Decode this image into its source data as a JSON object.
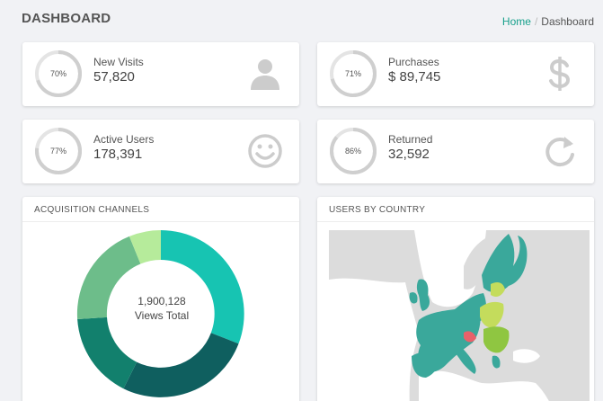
{
  "header": {
    "title": "DASHBOARD"
  },
  "breadcrumb": {
    "home": "Home",
    "separator": "/",
    "current": "Dashboard"
  },
  "stats": [
    {
      "percent": 70,
      "percent_label": "70%",
      "label": "New Visits",
      "value": "57,820",
      "icon": "user-icon"
    },
    {
      "percent": 71,
      "percent_label": "71%",
      "label": "Purchases",
      "value": "$ 89,745",
      "icon": "dollar-icon"
    },
    {
      "percent": 77,
      "percent_label": "77%",
      "label": "Active Users",
      "value": "178,391",
      "icon": "smiley-icon"
    },
    {
      "percent": 86,
      "percent_label": "86%",
      "label": "Returned",
      "value": "32,592",
      "icon": "refresh-icon"
    }
  ],
  "acquisition": {
    "title": "ACQUISITION CHANNELS",
    "total_value": "1,900,128",
    "total_label": "Views Total"
  },
  "country": {
    "title": "USERS BY COUNTRY"
  },
  "colors": {
    "accent": "#17a08b",
    "ring_track": "#e4e4e4",
    "ring_fill": "#cfcfcf",
    "icon": "#cccccc",
    "donut": [
      "#17c4b2",
      "#0f5f5f",
      "#12806d",
      "#6dbd8a",
      "#b6eb9b"
    ],
    "map_land": "#dcdcdc",
    "map_sea": "#ffffff",
    "map_teal": "#3aa89b",
    "map_green": "#8fc641",
    "map_lime": "#c4dc5c",
    "map_red": "#e8616a"
  }
}
